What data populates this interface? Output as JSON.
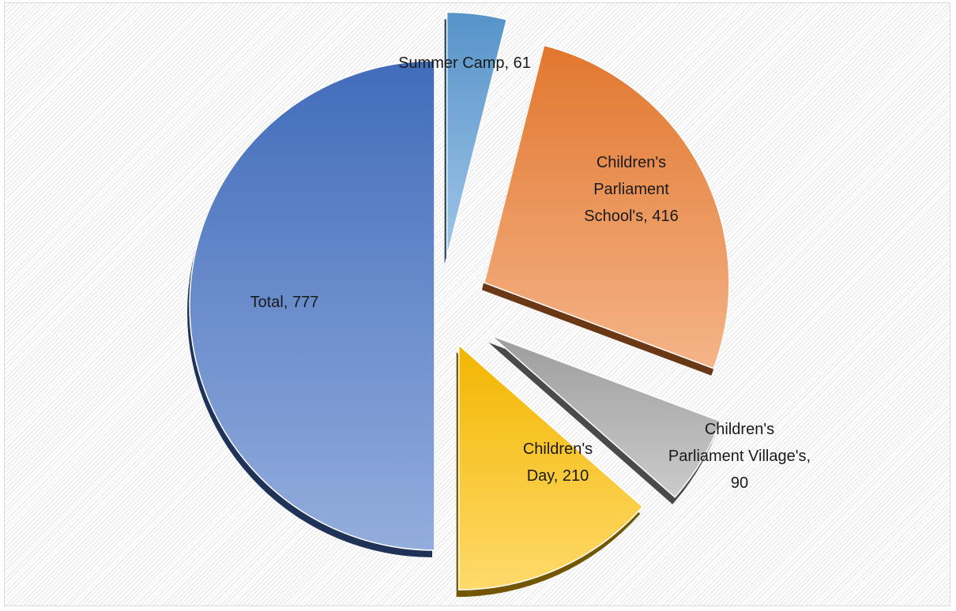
{
  "chart_data": {
    "type": "pie",
    "title": "",
    "exploded": true,
    "slices": [
      {
        "label": "Summer Camp",
        "value": 61,
        "display": "Summer Camp, 61",
        "label_position": "outside",
        "color": "#5b9bd5"
      },
      {
        "label": "Children's Parliament School's",
        "value": 416,
        "display": "Children's Parliament School's, 416",
        "label_position": "inside",
        "color": "#ed7d31"
      },
      {
        "label": "Children's Parliament Village's",
        "value": 90,
        "display": "Children's Parliament Village's, 90",
        "label_position": "outside",
        "color": "#a5a5a5"
      },
      {
        "label": "Children's Day",
        "value": 210,
        "display": "Children's Day, 210",
        "label_position": "inside",
        "color": "#ffc000"
      },
      {
        "label": "Total",
        "value": 777,
        "display": "Total, 777",
        "label_position": "inside",
        "color": "#4472c4"
      }
    ],
    "legend": "none",
    "grid": false
  }
}
